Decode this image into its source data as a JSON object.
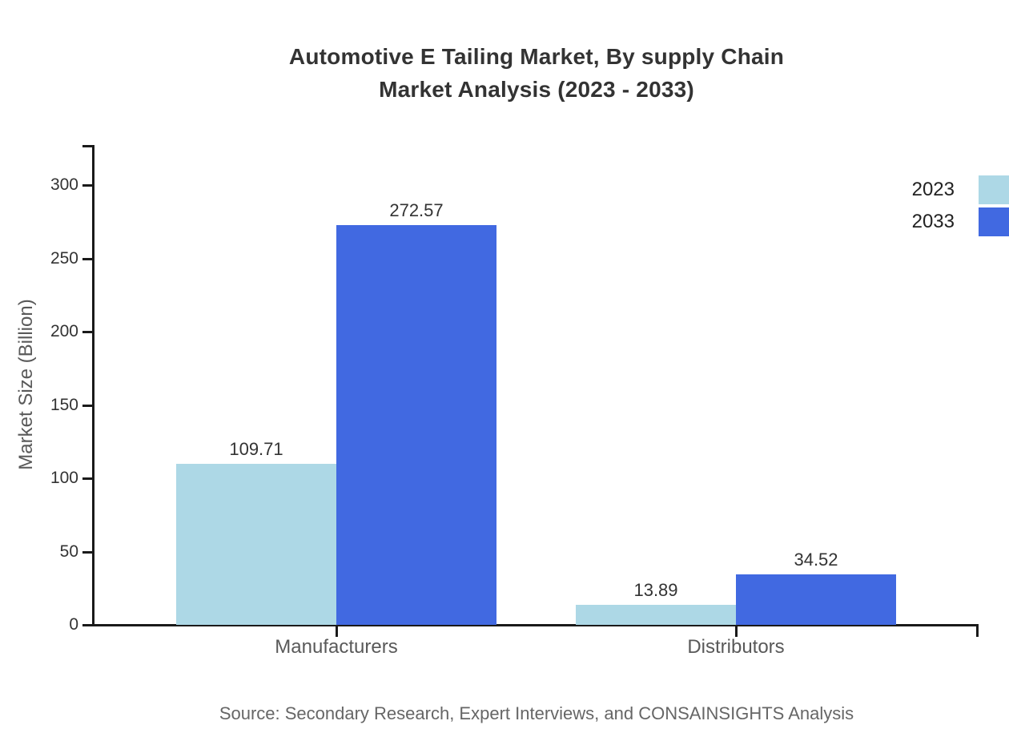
{
  "page": {
    "background": "#ffffff"
  },
  "chart_data": {
    "type": "bar",
    "title_lines": [
      "Automotive E Tailing Market, By supply Chain",
      "Market Analysis (2023 - 2033)"
    ],
    "categories": [
      "Manufacturers",
      "Distributors"
    ],
    "series": [
      {
        "name": "2023",
        "color": "#ADD8E6",
        "values": [
          109.71,
          13.89
        ]
      },
      {
        "name": "2033",
        "color": "#4169E1",
        "values": [
          272.57,
          34.52
        ]
      }
    ],
    "ylabel": "Market Size (Billion)",
    "yticks": [
      0,
      50,
      100,
      150,
      200,
      250,
      300
    ],
    "ylim": [
      0,
      327
    ],
    "grid": false,
    "legend_position": "top-right",
    "value_label_decimals": 2,
    "source_note": "Source: Secondary Research, Expert Interviews, and CONSAINSIGHTS Analysis"
  },
  "colors": {
    "title": "#333333",
    "axis": "#1a1a1a",
    "tick_label": "#333333",
    "axis_label": "#595959",
    "value_label": "#333333",
    "legend_label": "#222222",
    "source": "#666666",
    "series_2023": "#ADD8E6",
    "series_2033": "#4169E1"
  }
}
